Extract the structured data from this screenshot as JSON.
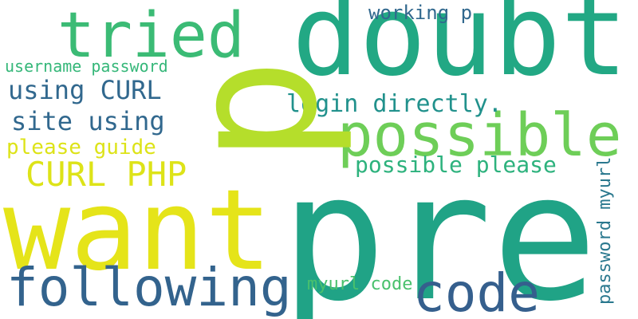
{
  "wordcloud": {
    "words": [
      {
        "text": "p",
        "color": "#b5de2b"
      },
      {
        "text": "doubt",
        "color": "#22a884"
      },
      {
        "text": "tried",
        "color": "#3bbb75"
      },
      {
        "text": "working p",
        "color": "#31688e"
      },
      {
        "text": "username password",
        "color": "#35b779"
      },
      {
        "text": "using CURL",
        "color": "#31688e"
      },
      {
        "text": "login directly.",
        "color": "#21918c"
      },
      {
        "text": "possible",
        "color": "#6ece58"
      },
      {
        "text": "site using",
        "color": "#31688e"
      },
      {
        "text": "please guide",
        "color": "#dde318"
      },
      {
        "text": "CURL PHP",
        "color": "#dde318"
      },
      {
        "text": "possible please",
        "color": "#2db27d"
      },
      {
        "text": "pre",
        "color": "#20a386"
      },
      {
        "text": "want",
        "color": "#e5e419"
      },
      {
        "text": "following",
        "color": "#33638d"
      },
      {
        "text": "code",
        "color": "#355f8d"
      },
      {
        "text": "myurl code",
        "color": "#4ac16d"
      },
      {
        "text": "password myurl",
        "color": "#2a788e"
      }
    ]
  }
}
